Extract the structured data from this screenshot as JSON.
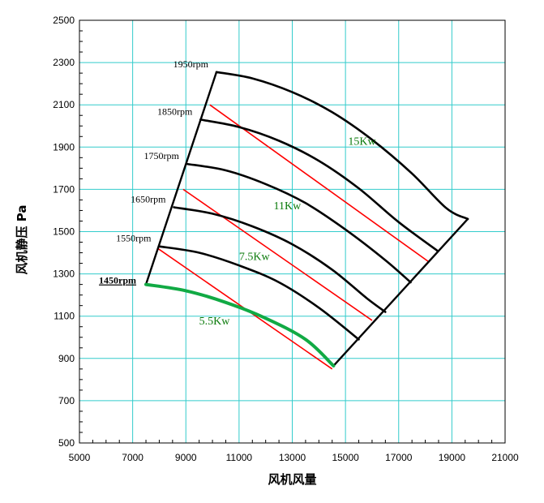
{
  "chart_data": {
    "type": "line",
    "xlabel": "风机风量",
    "ylabel": "风机静压  Pa",
    "xlim": [
      5000,
      21000
    ],
    "ylim": [
      500,
      2500
    ],
    "xticks": [
      5000,
      7000,
      9000,
      11000,
      13000,
      15000,
      17000,
      19000,
      21000
    ],
    "yticks": [
      500,
      700,
      900,
      1100,
      1300,
      1500,
      1700,
      1900,
      2100,
      2300,
      2500
    ],
    "grid": true,
    "colors": {
      "grid": "#33cccc",
      "speed": "#000000",
      "power": "#ff0000",
      "highlight": "#11aa44",
      "power_label": "#0a7a0a",
      "rpm_underline_label": "#cc0000"
    },
    "speed_curves": [
      {
        "label": "1450rpm",
        "highlight": true,
        "points": [
          [
            7500,
            1250
          ],
          [
            9000,
            1220
          ],
          [
            10500,
            1165
          ],
          [
            12000,
            1090
          ],
          [
            13500,
            990
          ],
          [
            14550,
            865
          ]
        ]
      },
      {
        "label": "1550rpm",
        "highlight": false,
        "points": [
          [
            8000,
            1430
          ],
          [
            9500,
            1400
          ],
          [
            11000,
            1340
          ],
          [
            12500,
            1260
          ],
          [
            14000,
            1140
          ],
          [
            15500,
            990
          ]
        ]
      },
      {
        "label": "1650rpm",
        "highlight": false,
        "points": [
          [
            8550,
            1615
          ],
          [
            10000,
            1585
          ],
          [
            11500,
            1525
          ],
          [
            13000,
            1440
          ],
          [
            14500,
            1320
          ],
          [
            15800,
            1185
          ],
          [
            16500,
            1120
          ]
        ]
      },
      {
        "label": "1750rpm",
        "highlight": false,
        "points": [
          [
            9050,
            1820
          ],
          [
            10500,
            1790
          ],
          [
            12000,
            1725
          ],
          [
            13500,
            1635
          ],
          [
            15000,
            1510
          ],
          [
            16500,
            1365
          ],
          [
            17450,
            1260
          ]
        ]
      },
      {
        "label": "1850rpm",
        "highlight": false,
        "points": [
          [
            9550,
            2030
          ],
          [
            11000,
            1995
          ],
          [
            12500,
            1930
          ],
          [
            14000,
            1835
          ],
          [
            15500,
            1705
          ],
          [
            17000,
            1545
          ],
          [
            18450,
            1410
          ]
        ]
      },
      {
        "label": "1950rpm",
        "highlight": false,
        "points": [
          [
            10150,
            2255
          ],
          [
            11500,
            2225
          ],
          [
            13000,
            2160
          ],
          [
            14500,
            2065
          ],
          [
            16000,
            1935
          ],
          [
            17500,
            1775
          ],
          [
            18800,
            1610
          ],
          [
            19600,
            1560
          ]
        ]
      }
    ],
    "boundary_lines": [
      {
        "points": [
          [
            7500,
            1250
          ],
          [
            10150,
            2255
          ]
        ]
      },
      {
        "points": [
          [
            14550,
            865
          ],
          [
            19600,
            1560
          ]
        ]
      }
    ],
    "power_lines": [
      {
        "label": "5.5Kw",
        "points": [
          [
            7950,
            1420
          ],
          [
            14500,
            850
          ]
        ]
      },
      {
        "label": "7.5Kw",
        "points": [
          [
            8900,
            1700
          ],
          [
            16000,
            1080
          ]
        ]
      },
      {
        "label": "15Kw",
        "points": [
          [
            9900,
            2100
          ],
          [
            18100,
            1360
          ]
        ]
      }
    ],
    "power_labels": [
      {
        "label": "15Kw",
        "x": 15100,
        "y": 1910
      },
      {
        "label": "11Kw",
        "x": 12300,
        "y": 1605
      },
      {
        "label": "7.5Kw",
        "x": 11000,
        "y": 1365
      },
      {
        "label": "5.5Kw",
        "x": 9500,
        "y": 1060
      }
    ]
  }
}
